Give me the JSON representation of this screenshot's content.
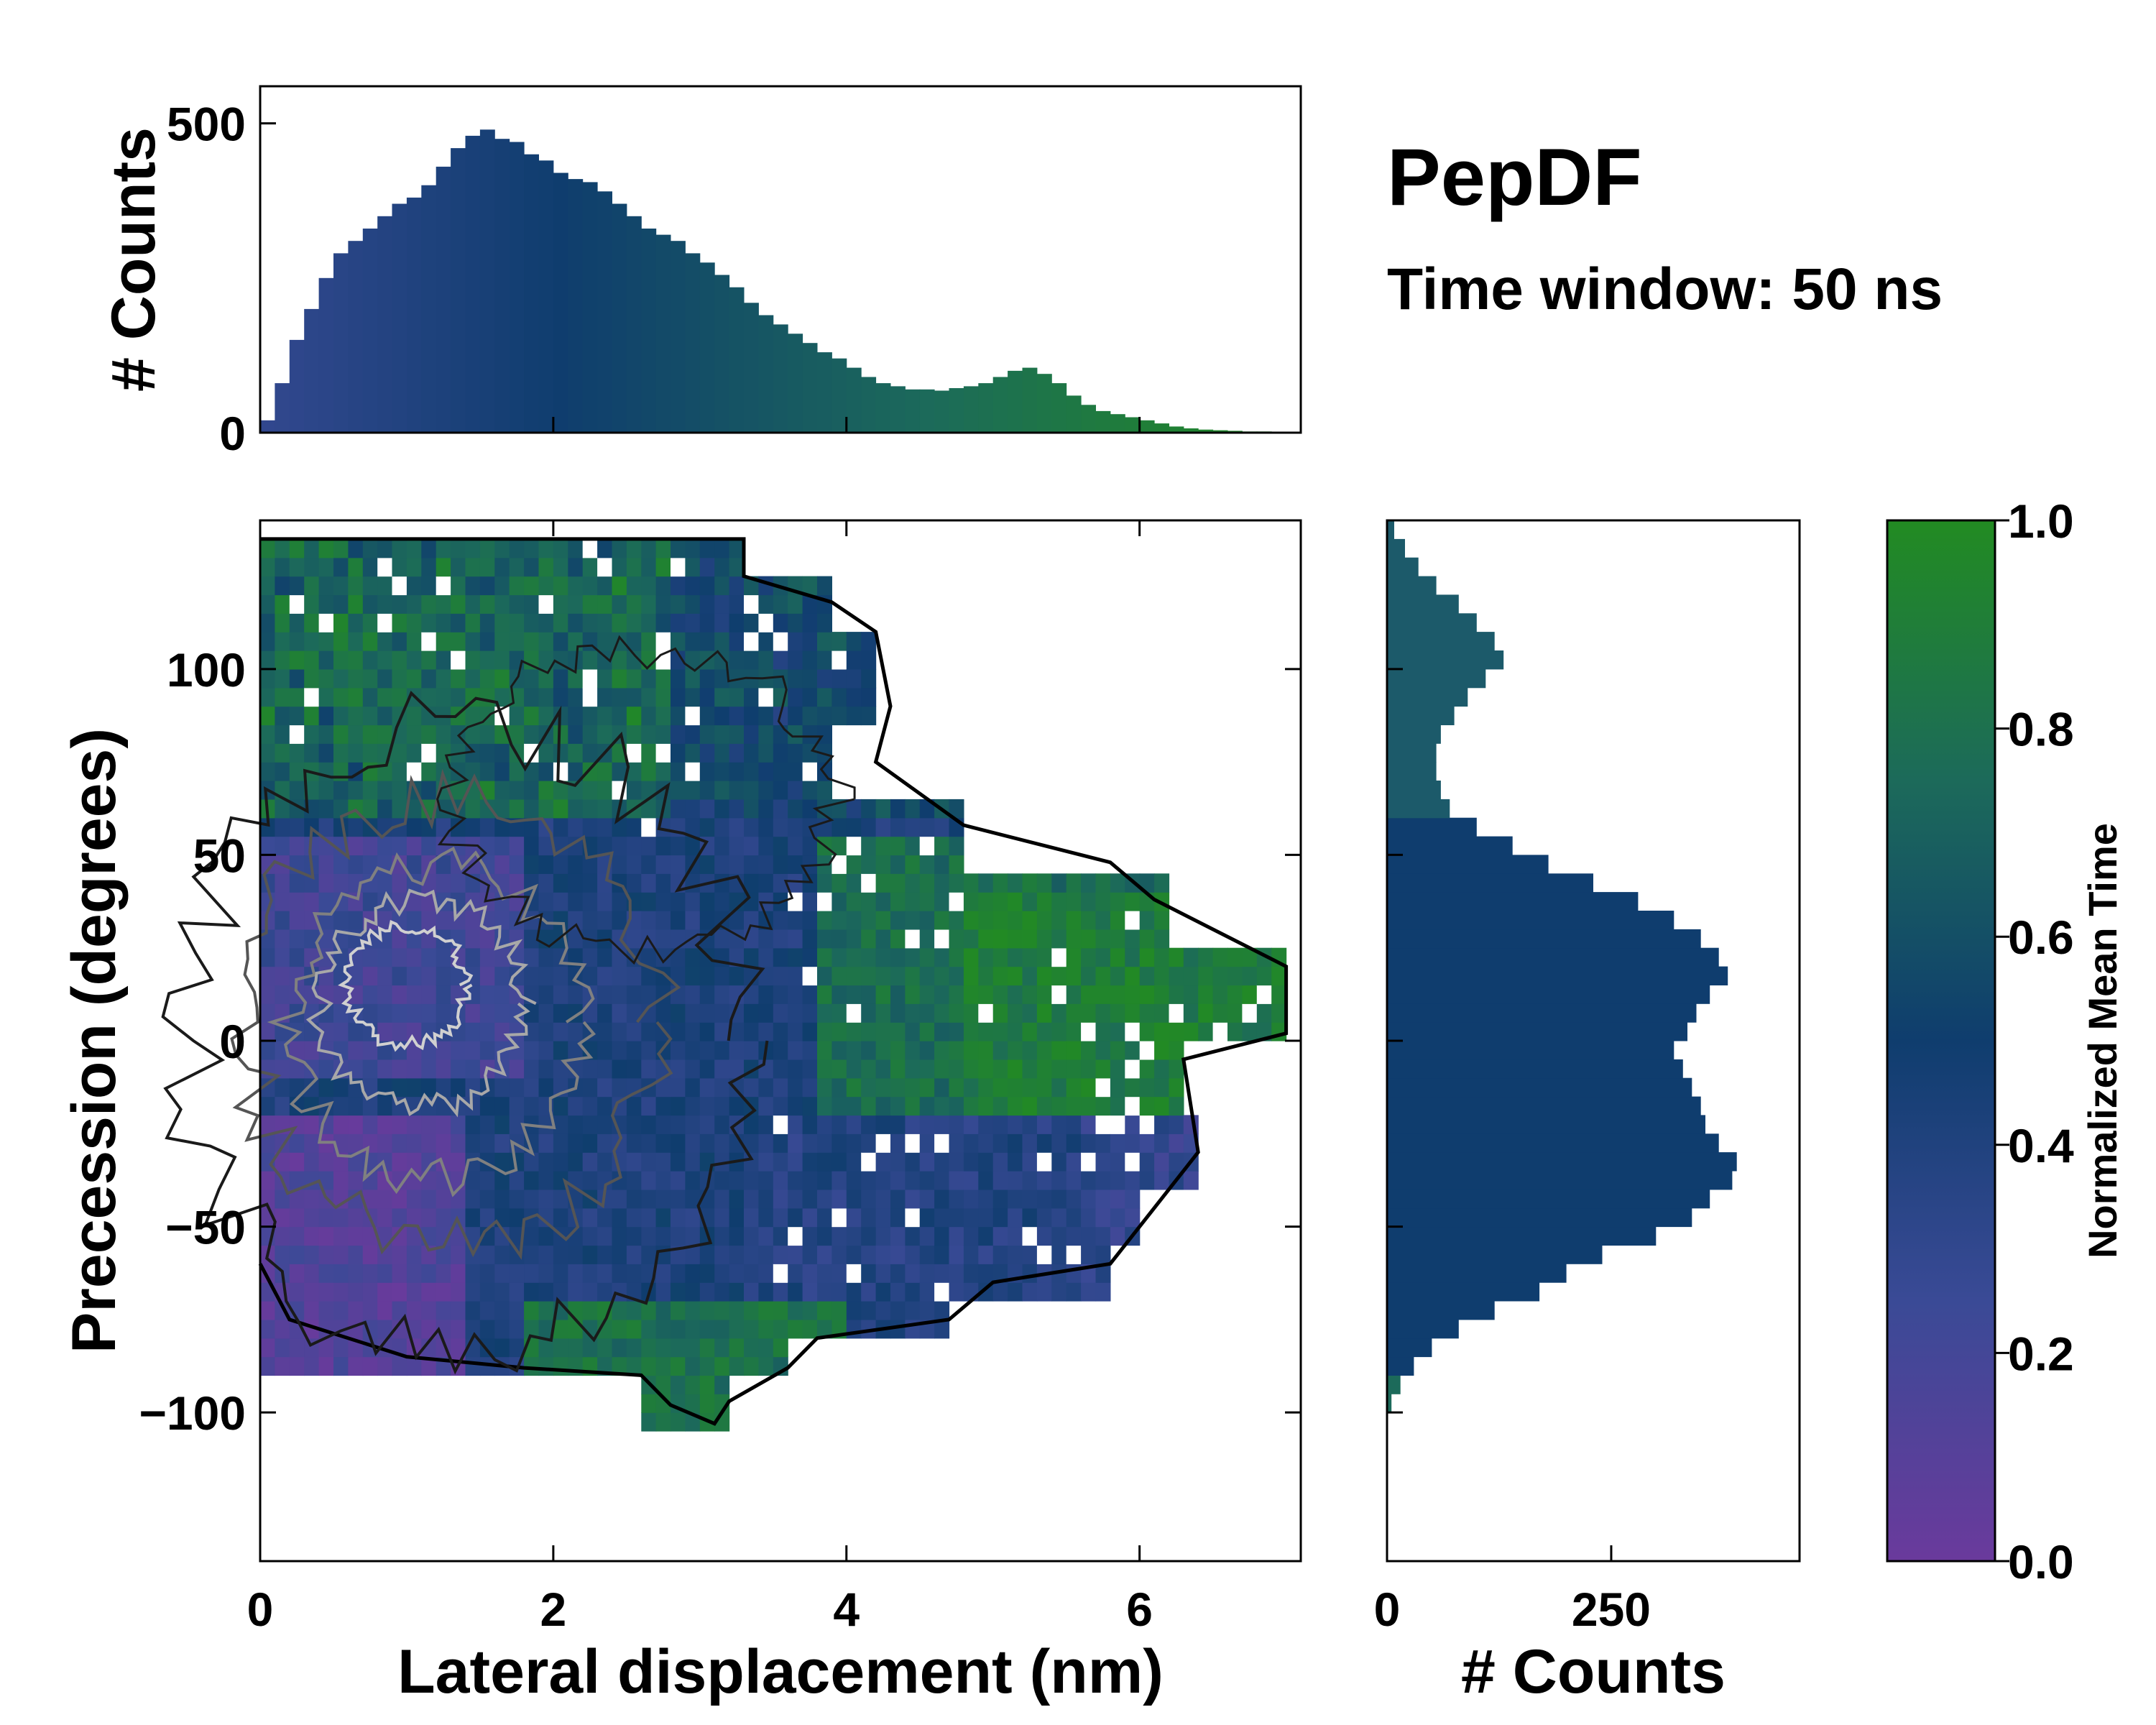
{
  "title": "PepDF",
  "subtitle": "Time window: 50 ns",
  "colors": {
    "low": "#6a3a9c",
    "mid": "#0f3d6e",
    "high": "#228b22",
    "contour_inner": "#b0b0b0",
    "contour_outer": "#000000"
  },
  "chart_data": [
    {
      "id": "main-heatmap",
      "type": "heatmap",
      "xlabel": "Lateral displacement (nm)",
      "ylabel": "Precession (degrees)",
      "xlim": [
        0,
        7.1
      ],
      "ylim": [
        -140,
        140
      ],
      "xticks": [
        0,
        2,
        4,
        6
      ],
      "xtick_labels": [
        "0",
        "2",
        "4",
        "6"
      ],
      "yticks": [
        100,
        50,
        0,
        -50,
        -100
      ],
      "ytick_labels": [
        "100",
        "50",
        "0",
        "−50",
        "−100"
      ],
      "description_regions": [
        {
          "x": [
            0,
            3.5
          ],
          "y": [
            -100,
            60
          ],
          "value": 0.35
        },
        {
          "x": [
            0,
            1.3
          ],
          "y": [
            -90,
            -20
          ],
          "value": 0.1
        },
        {
          "x": [
            0,
            1.8
          ],
          "y": [
            0,
            50
          ],
          "value": 0.2
        },
        {
          "x": [
            0,
            4.5
          ],
          "y": [
            60,
            135
          ],
          "value": 0.75
        },
        {
          "x": [
            4,
            7
          ],
          "y": [
            -30,
            50
          ],
          "value": 0.8
        },
        {
          "x": [
            3.5,
            6.5
          ],
          "y": [
            -80,
            -20
          ],
          "value": 0.45
        }
      ],
      "contour_levels": 6
    },
    {
      "id": "top-histogram",
      "type": "bar",
      "ylabel": "# Counts",
      "xlim": [
        0,
        7.1
      ],
      "ylim": [
        0,
        560
      ],
      "yticks": [
        0,
        500
      ],
      "ytick_labels": [
        "0",
        "500"
      ],
      "x": [
        0.0,
        0.1,
        0.2,
        0.3,
        0.4,
        0.5,
        0.6,
        0.7,
        0.8,
        0.9,
        1.0,
        1.1,
        1.2,
        1.3,
        1.4,
        1.5,
        1.6,
        1.7,
        1.8,
        1.9,
        2.0,
        2.1,
        2.2,
        2.3,
        2.4,
        2.5,
        2.6,
        2.7,
        2.8,
        2.9,
        3.0,
        3.1,
        3.2,
        3.3,
        3.4,
        3.5,
        3.6,
        3.7,
        3.8,
        3.9,
        4.0,
        4.1,
        4.2,
        4.3,
        4.4,
        4.5,
        4.6,
        4.7,
        4.8,
        4.9,
        5.0,
        5.1,
        5.2,
        5.3,
        5.4,
        5.5,
        5.6,
        5.7,
        5.8,
        5.9,
        6.0,
        6.1,
        6.2,
        6.3,
        6.4,
        6.5,
        6.6,
        6.7,
        6.8,
        6.9,
        7.0
      ],
      "values": [
        20,
        80,
        150,
        200,
        250,
        290,
        310,
        330,
        350,
        370,
        380,
        400,
        430,
        460,
        480,
        490,
        475,
        470,
        450,
        440,
        420,
        410,
        405,
        390,
        370,
        350,
        330,
        320,
        310,
        290,
        275,
        255,
        235,
        210,
        190,
        175,
        160,
        145,
        130,
        120,
        105,
        90,
        80,
        75,
        70,
        70,
        68,
        72,
        75,
        80,
        90,
        100,
        105,
        95,
        80,
        60,
        45,
        35,
        30,
        25,
        20,
        15,
        10,
        7,
        5,
        4,
        3,
        2,
        2,
        1,
        1
      ]
    },
    {
      "id": "right-histogram",
      "type": "bar",
      "xlabel": "# Counts",
      "orientation": "horizontal",
      "xlim": [
        0,
        460
      ],
      "xticks": [
        0,
        250
      ],
      "xtick_labels": [
        "0",
        "250"
      ],
      "y": [
        -100,
        -95,
        -90,
        -85,
        -80,
        -75,
        -70,
        -65,
        -60,
        -55,
        -50,
        -45,
        -40,
        -35,
        -30,
        -25,
        -20,
        -15,
        -10,
        -5,
        0,
        5,
        10,
        15,
        20,
        25,
        30,
        35,
        40,
        45,
        50,
        55,
        60,
        65,
        70,
        75,
        80,
        85,
        90,
        95,
        100,
        105,
        110,
        115,
        120,
        125,
        130,
        135
      ],
      "values": [
        5,
        15,
        30,
        50,
        80,
        120,
        170,
        200,
        240,
        300,
        340,
        360,
        385,
        390,
        370,
        355,
        350,
        340,
        330,
        320,
        335,
        345,
        360,
        380,
        370,
        350,
        320,
        280,
        230,
        180,
        140,
        100,
        70,
        60,
        55,
        55,
        60,
        75,
        90,
        110,
        130,
        120,
        100,
        80,
        55,
        35,
        20,
        8
      ]
    },
    {
      "id": "colorbar",
      "type": "colorbar",
      "label": "Normalized Mean Time",
      "ylim": [
        0,
        1
      ],
      "ticks": [
        1.0,
        0.8,
        0.6,
        0.4,
        0.2,
        0.0
      ],
      "tick_labels": [
        "1.0",
        "0.8",
        "0.6",
        "0.4",
        "0.2",
        "0.0"
      ]
    }
  ]
}
